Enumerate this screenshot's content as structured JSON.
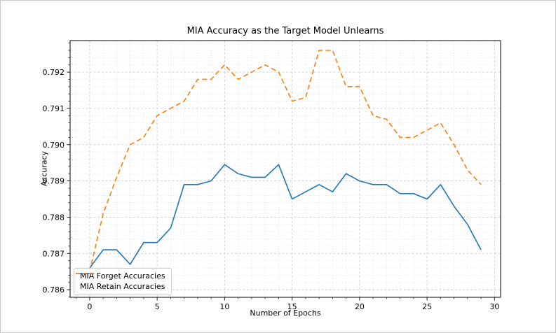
{
  "figure": {
    "background": "#ffffff",
    "border_color": "#c9c9c9"
  },
  "chart_data": {
    "type": "line",
    "title": "MIA Accuracy as the Target Model Unlearns",
    "xlabel": "Number of Epochs",
    "ylabel": "Accuracy",
    "x": [
      0,
      1,
      2,
      3,
      4,
      5,
      6,
      7,
      8,
      9,
      10,
      11,
      12,
      13,
      14,
      15,
      16,
      17,
      18,
      19,
      20,
      21,
      22,
      23,
      24,
      25,
      26,
      27,
      28,
      29
    ],
    "series": [
      {
        "name": "MIA Forget Accuracies",
        "color": "#1f77b4",
        "line_style": "solid",
        "values": [
          0.7866,
          0.7871,
          0.7871,
          0.7867,
          0.7873,
          0.7873,
          0.7877,
          0.7889,
          0.7889,
          0.789,
          0.78945,
          0.7892,
          0.7891,
          0.7891,
          0.78945,
          0.7885,
          0.7887,
          0.7889,
          0.7887,
          0.7892,
          0.789,
          0.7889,
          0.7889,
          0.78865,
          0.78865,
          0.7885,
          0.7889,
          0.7883,
          0.7878,
          0.7871
        ]
      },
      {
        "name": "MIA Retain Accuracies",
        "color": "#ff7f0e",
        "line_style": "dashed",
        "values": [
          0.7865,
          0.7881,
          0.7891,
          0.79,
          0.7902,
          0.7908,
          0.791,
          0.7912,
          0.7918,
          0.7918,
          0.7922,
          0.7918,
          0.792,
          0.7922,
          0.792,
          0.7912,
          0.7913,
          0.7926,
          0.7926,
          0.7916,
          0.7916,
          0.7908,
          0.7907,
          0.7902,
          0.7902,
          0.7904,
          0.7906,
          0.79,
          0.7893,
          0.7889
        ]
      }
    ],
    "xlim": [
      -1.45,
      30.45
    ],
    "ylim": [
      0.78579,
      0.79287
    ],
    "xticks": [
      0,
      5,
      10,
      15,
      20,
      25,
      30
    ],
    "xtick_labels": [
      "0",
      "5",
      "10",
      "15",
      "20",
      "25",
      "30"
    ],
    "yticks": [
      0.786,
      0.787,
      0.788,
      0.789,
      0.79,
      0.791,
      0.792
    ],
    "ytick_labels": [
      "0.786",
      "0.787",
      "0.788",
      "0.789",
      "0.790",
      "0.791",
      "0.792"
    ],
    "x_minor_step": 1,
    "y_minor_step": 0.0002,
    "grid": true,
    "legend_position": "lower-left",
    "grid_major_color": "#cccccc",
    "grid_minor_color": "#e0e0e0",
    "axis_color": "#1a1a1a",
    "text_color": "#000000"
  }
}
